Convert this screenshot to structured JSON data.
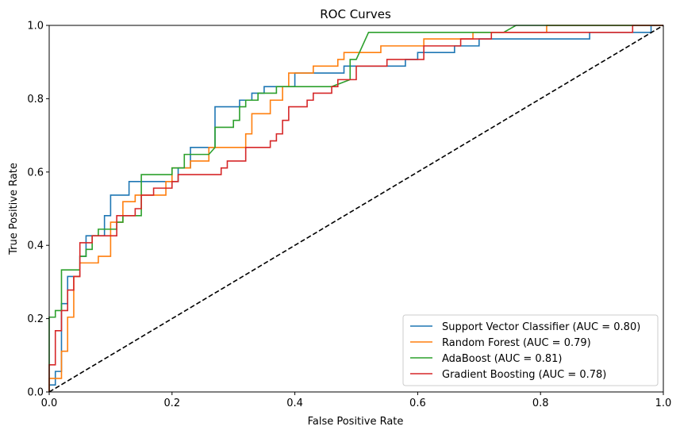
{
  "chart_data": {
    "type": "line",
    "title": "ROC Curves",
    "xlabel": "False Positive Rate",
    "ylabel": "True Positive Rate",
    "xlim": [
      0.0,
      1.0
    ],
    "ylim": [
      0.0,
      1.0
    ],
    "xticks": [
      "0.0",
      "0.2",
      "0.4",
      "0.6",
      "0.8",
      "1.0"
    ],
    "yticks": [
      "0.0",
      "0.2",
      "0.4",
      "0.6",
      "0.8",
      "1.0"
    ],
    "grid": false,
    "legend_position": "lower-right",
    "series": [
      {
        "name": "Support Vector Classifier (AUC = 0.80)",
        "color": "#1f77b4",
        "points": [
          [
            0,
            0
          ],
          [
            0,
            0.019
          ],
          [
            0.01,
            0.019
          ],
          [
            0.01,
            0.056
          ],
          [
            0.02,
            0.056
          ],
          [
            0.02,
            0.241
          ],
          [
            0.03,
            0.241
          ],
          [
            0.03,
            0.315
          ],
          [
            0.05,
            0.315
          ],
          [
            0.05,
            0.37
          ],
          [
            0.06,
            0.37
          ],
          [
            0.06,
            0.426
          ],
          [
            0.09,
            0.426
          ],
          [
            0.09,
            0.481
          ],
          [
            0.1,
            0.481
          ],
          [
            0.1,
            0.537
          ],
          [
            0.13,
            0.537
          ],
          [
            0.13,
            0.574
          ],
          [
            0.21,
            0.574
          ],
          [
            0.21,
            0.611
          ],
          [
            0.23,
            0.611
          ],
          [
            0.23,
            0.667
          ],
          [
            0.27,
            0.667
          ],
          [
            0.27,
            0.778
          ],
          [
            0.31,
            0.778
          ],
          [
            0.31,
            0.796
          ],
          [
            0.33,
            0.796
          ],
          [
            0.33,
            0.815
          ],
          [
            0.35,
            0.815
          ],
          [
            0.35,
            0.833
          ],
          [
            0.4,
            0.833
          ],
          [
            0.4,
            0.87
          ],
          [
            0.48,
            0.87
          ],
          [
            0.48,
            0.889
          ],
          [
            0.58,
            0.889
          ],
          [
            0.58,
            0.907
          ],
          [
            0.6,
            0.907
          ],
          [
            0.6,
            0.926
          ],
          [
            0.66,
            0.926
          ],
          [
            0.66,
            0.944
          ],
          [
            0.7,
            0.944
          ],
          [
            0.7,
            0.963
          ],
          [
            0.88,
            0.963
          ],
          [
            0.88,
            0.981
          ],
          [
            0.98,
            0.981
          ],
          [
            0.98,
            1.0
          ],
          [
            1.0,
            1.0
          ]
        ]
      },
      {
        "name": "Random Forest (AUC = 0.79)",
        "color": "#ff7f0e",
        "points": [
          [
            0,
            0
          ],
          [
            0,
            0.037
          ],
          [
            0.02,
            0.037
          ],
          [
            0.02,
            0.111
          ],
          [
            0.03,
            0.111
          ],
          [
            0.03,
            0.204
          ],
          [
            0.04,
            0.204
          ],
          [
            0.04,
            0.315
          ],
          [
            0.05,
            0.315
          ],
          [
            0.05,
            0.352
          ],
          [
            0.08,
            0.352
          ],
          [
            0.08,
            0.37
          ],
          [
            0.1,
            0.37
          ],
          [
            0.1,
            0.463
          ],
          [
            0.12,
            0.463
          ],
          [
            0.12,
            0.519
          ],
          [
            0.14,
            0.519
          ],
          [
            0.14,
            0.537
          ],
          [
            0.19,
            0.537
          ],
          [
            0.19,
            0.574
          ],
          [
            0.2,
            0.574
          ],
          [
            0.2,
            0.611
          ],
          [
            0.23,
            0.611
          ],
          [
            0.23,
            0.63
          ],
          [
            0.26,
            0.63
          ],
          [
            0.26,
            0.667
          ],
          [
            0.32,
            0.667
          ],
          [
            0.32,
            0.704
          ],
          [
            0.33,
            0.704
          ],
          [
            0.33,
            0.759
          ],
          [
            0.36,
            0.759
          ],
          [
            0.36,
            0.796
          ],
          [
            0.38,
            0.796
          ],
          [
            0.38,
            0.833
          ],
          [
            0.39,
            0.833
          ],
          [
            0.39,
            0.87
          ],
          [
            0.43,
            0.87
          ],
          [
            0.43,
            0.889
          ],
          [
            0.47,
            0.889
          ],
          [
            0.47,
            0.907
          ],
          [
            0.48,
            0.907
          ],
          [
            0.48,
            0.926
          ],
          [
            0.54,
            0.926
          ],
          [
            0.54,
            0.944
          ],
          [
            0.61,
            0.944
          ],
          [
            0.61,
            0.963
          ],
          [
            0.69,
            0.963
          ],
          [
            0.69,
            0.981
          ],
          [
            0.81,
            0.981
          ],
          [
            0.81,
            1.0
          ],
          [
            1.0,
            1.0
          ]
        ]
      },
      {
        "name": "AdaBoost (AUC = 0.81)",
        "color": "#2ca02c",
        "points": [
          [
            0,
            0
          ],
          [
            0,
            0.204
          ],
          [
            0.01,
            0.204
          ],
          [
            0.01,
            0.222
          ],
          [
            0.02,
            0.222
          ],
          [
            0.02,
            0.333
          ],
          [
            0.05,
            0.333
          ],
          [
            0.05,
            0.37
          ],
          [
            0.06,
            0.37
          ],
          [
            0.06,
            0.389
          ],
          [
            0.07,
            0.389
          ],
          [
            0.07,
            0.426
          ],
          [
            0.08,
            0.426
          ],
          [
            0.08,
            0.444
          ],
          [
            0.11,
            0.444
          ],
          [
            0.11,
            0.463
          ],
          [
            0.12,
            0.463
          ],
          [
            0.12,
            0.481
          ],
          [
            0.15,
            0.481
          ],
          [
            0.15,
            0.593
          ],
          [
            0.2,
            0.593
          ],
          [
            0.2,
            0.611
          ],
          [
            0.22,
            0.611
          ],
          [
            0.22,
            0.648
          ],
          [
            0.26,
            0.648
          ],
          [
            0.27,
            0.667
          ],
          [
            0.27,
            0.722
          ],
          [
            0.3,
            0.722
          ],
          [
            0.3,
            0.741
          ],
          [
            0.31,
            0.741
          ],
          [
            0.31,
            0.778
          ],
          [
            0.32,
            0.778
          ],
          [
            0.32,
            0.796
          ],
          [
            0.34,
            0.796
          ],
          [
            0.34,
            0.815
          ],
          [
            0.37,
            0.815
          ],
          [
            0.37,
            0.833
          ],
          [
            0.46,
            0.833
          ],
          [
            0.49,
            0.852
          ],
          [
            0.49,
            0.907
          ],
          [
            0.5,
            0.907
          ],
          [
            0.52,
            0.981
          ],
          [
            0.74,
            0.981
          ],
          [
            0.76,
            1.0
          ],
          [
            1.0,
            1.0
          ]
        ]
      },
      {
        "name": "Gradient Boosting (AUC = 0.78)",
        "color": "#d62728",
        "points": [
          [
            0,
            0
          ],
          [
            0,
            0.074
          ],
          [
            0.01,
            0.074
          ],
          [
            0.01,
            0.167
          ],
          [
            0.02,
            0.167
          ],
          [
            0.02,
            0.222
          ],
          [
            0.03,
            0.222
          ],
          [
            0.03,
            0.278
          ],
          [
            0.04,
            0.278
          ],
          [
            0.04,
            0.315
          ],
          [
            0.05,
            0.315
          ],
          [
            0.05,
            0.407
          ],
          [
            0.07,
            0.407
          ],
          [
            0.07,
            0.426
          ],
          [
            0.11,
            0.426
          ],
          [
            0.11,
            0.481
          ],
          [
            0.14,
            0.481
          ],
          [
            0.14,
            0.5
          ],
          [
            0.15,
            0.5
          ],
          [
            0.15,
            0.537
          ],
          [
            0.17,
            0.537
          ],
          [
            0.17,
            0.556
          ],
          [
            0.2,
            0.556
          ],
          [
            0.2,
            0.574
          ],
          [
            0.21,
            0.574
          ],
          [
            0.21,
            0.593
          ],
          [
            0.28,
            0.593
          ],
          [
            0.28,
            0.611
          ],
          [
            0.29,
            0.611
          ],
          [
            0.29,
            0.63
          ],
          [
            0.32,
            0.63
          ],
          [
            0.32,
            0.667
          ],
          [
            0.36,
            0.667
          ],
          [
            0.36,
            0.685
          ],
          [
            0.37,
            0.685
          ],
          [
            0.37,
            0.704
          ],
          [
            0.38,
            0.704
          ],
          [
            0.38,
            0.741
          ],
          [
            0.39,
            0.741
          ],
          [
            0.39,
            0.778
          ],
          [
            0.42,
            0.778
          ],
          [
            0.42,
            0.796
          ],
          [
            0.43,
            0.796
          ],
          [
            0.43,
            0.815
          ],
          [
            0.46,
            0.815
          ],
          [
            0.46,
            0.833
          ],
          [
            0.47,
            0.833
          ],
          [
            0.47,
            0.852
          ],
          [
            0.5,
            0.852
          ],
          [
            0.5,
            0.889
          ],
          [
            0.55,
            0.889
          ],
          [
            0.55,
            0.907
          ],
          [
            0.61,
            0.907
          ],
          [
            0.61,
            0.944
          ],
          [
            0.67,
            0.944
          ],
          [
            0.67,
            0.963
          ],
          [
            0.72,
            0.963
          ],
          [
            0.72,
            0.981
          ],
          [
            0.95,
            0.981
          ],
          [
            0.95,
            1.0
          ],
          [
            1.0,
            1.0
          ]
        ]
      }
    ],
    "reference_line": {
      "style": "dashed",
      "color": "#000000",
      "points": [
        [
          0,
          0
        ],
        [
          1,
          1
        ]
      ]
    }
  }
}
